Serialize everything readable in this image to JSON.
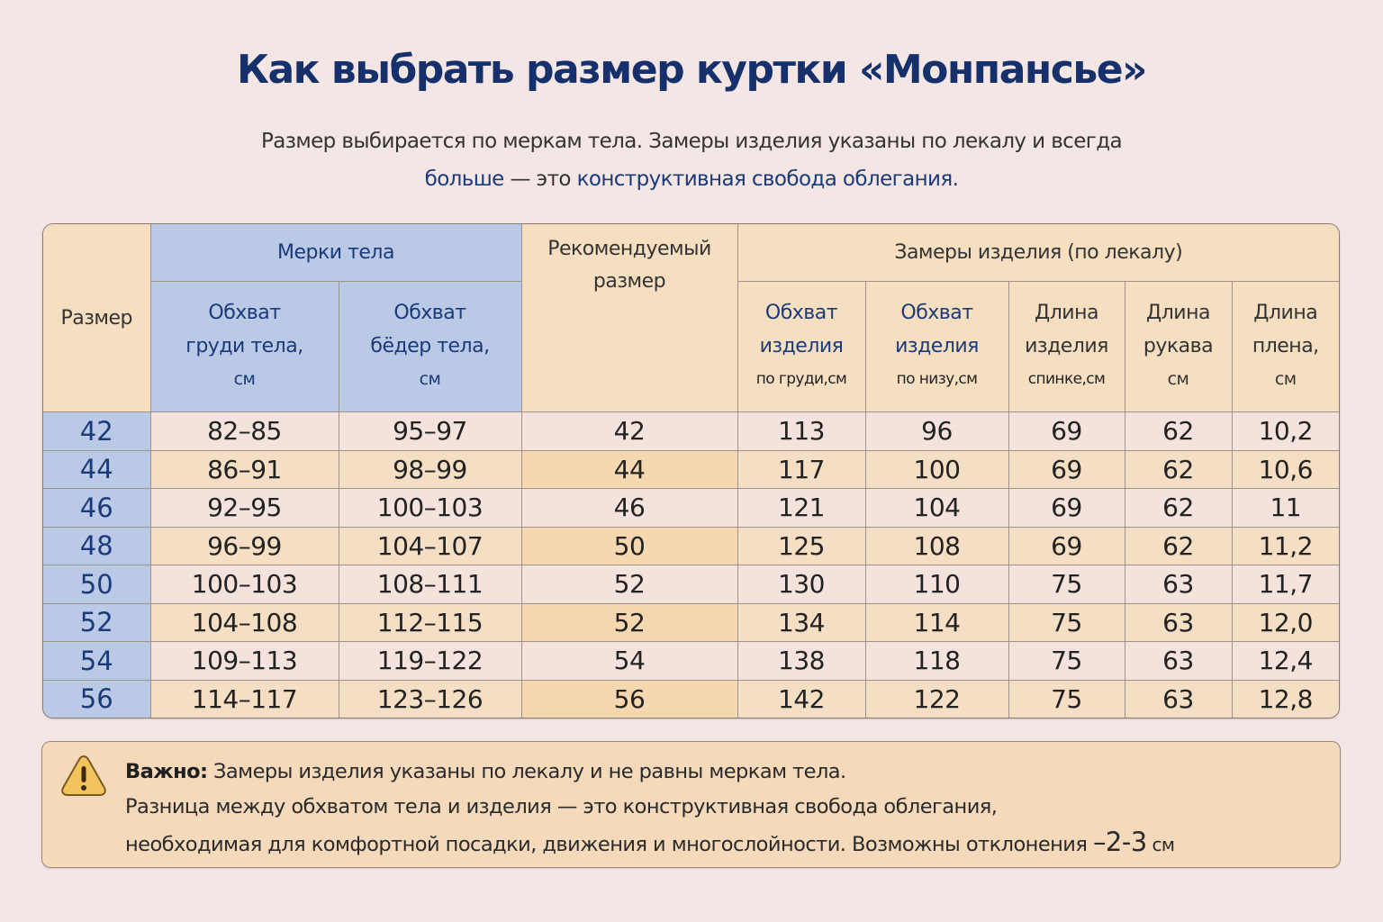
{
  "header": {
    "title": "Как выбрать размер куртки «Монпансье»",
    "subtitle_line1": "Размер выбирается по меркам тела. Замеры изделия указаны по лекалу и всегда",
    "subtitle_line2_part1": "больше",
    "subtitle_line2_part2": " — это ",
    "subtitle_line2_part3": "конструктивная свобода облегания."
  },
  "table": {
    "headers": {
      "size": "Размер",
      "body_group": "Мерки тела",
      "recommended_line1": "Рекомендуемый",
      "recommended_line2": "размер",
      "product_group": "Замеры изделия (по лекалу)",
      "chest_body": {
        "l1": "Обхват",
        "l2": "груди тела,",
        "l3": "см"
      },
      "hips_body": {
        "l1": "Обхват",
        "l2": "бёдер тела,",
        "l3": "см"
      },
      "chest_product": {
        "l1": "Обхват",
        "l2": "изделия",
        "l3": "по груди,",
        "unit": "см"
      },
      "hem_product": {
        "l1": "Обхват",
        "l2": "изделия",
        "l3": "по низу,",
        "unit": "см"
      },
      "length_back": {
        "l1": "Длина",
        "l2": "изделия",
        "l3": "спинке,",
        "unit": "см"
      },
      "sleeve_length": {
        "l1": "Длина",
        "l2": "рукава",
        "l3": "см"
      },
      "shoulder_length": {
        "l1": "Длина",
        "l2": "плена,",
        "l3": "см"
      }
    },
    "rows": [
      {
        "size": "42",
        "chest": "82–85",
        "hips": "95–97",
        "rec": "42",
        "p_chest": "113",
        "p_hem": "96",
        "p_len": "69",
        "sleeve": "62",
        "shoulder": "10,2"
      },
      {
        "size": "44",
        "chest": "86–91",
        "hips": "98–99",
        "rec": "44",
        "p_chest": "117",
        "p_hem": "100",
        "p_len": "69",
        "sleeve": "62",
        "shoulder": "10,6"
      },
      {
        "size": "46",
        "chest": "92–95",
        "hips": "100–103",
        "rec": "46",
        "p_chest": "121",
        "p_hem": "104",
        "p_len": "69",
        "sleeve": "62",
        "shoulder": "11"
      },
      {
        "size": "48",
        "chest": "96–99",
        "hips": "104–107",
        "rec": "50",
        "p_chest": "125",
        "p_hem": "108",
        "p_len": "69",
        "sleeve": "62",
        "shoulder": "11,2"
      },
      {
        "size": "50",
        "chest": "100–103",
        "hips": "108–111",
        "rec": "52",
        "p_chest": "130",
        "p_hem": "110",
        "p_len": "75",
        "sleeve": "63",
        "shoulder": "11,7"
      },
      {
        "size": "52",
        "chest": "104–108",
        "hips": "112–115",
        "rec": "52",
        "p_chest": "134",
        "p_hem": "114",
        "p_len": "75",
        "sleeve": "63",
        "shoulder": "12,0"
      },
      {
        "size": "54",
        "chest": "109–113",
        "hips": "119–122",
        "rec": "54",
        "p_chest": "138",
        "p_hem": "118",
        "p_len": "75",
        "sleeve": "63",
        "shoulder": "12,4"
      },
      {
        "size": "56",
        "chest": "114–117",
        "hips": "123–126",
        "rec": "56",
        "p_chest": "142",
        "p_hem": "122",
        "p_len": "75",
        "sleeve": "63",
        "shoulder": "12,8"
      }
    ]
  },
  "note": {
    "icon": "warning-icon",
    "label": "Важно:",
    "line1": " Замеры изделия указаны по лекалу и не равны меркам тела.",
    "line2": "Разница между обхватом тела и изделия — это конструктивная свобода облегания,",
    "line3": "необходимая для комфортной посадки, движения и многослойности. Возможны отклонения ",
    "deviation": "–2-3",
    "unit": " см"
  },
  "colors": {
    "title": "#15306a",
    "accent_blue": "#b9c9e6",
    "accent_orange": "#f6dfc0",
    "background": "#f4e6e4",
    "warning": "#f2c45e"
  }
}
